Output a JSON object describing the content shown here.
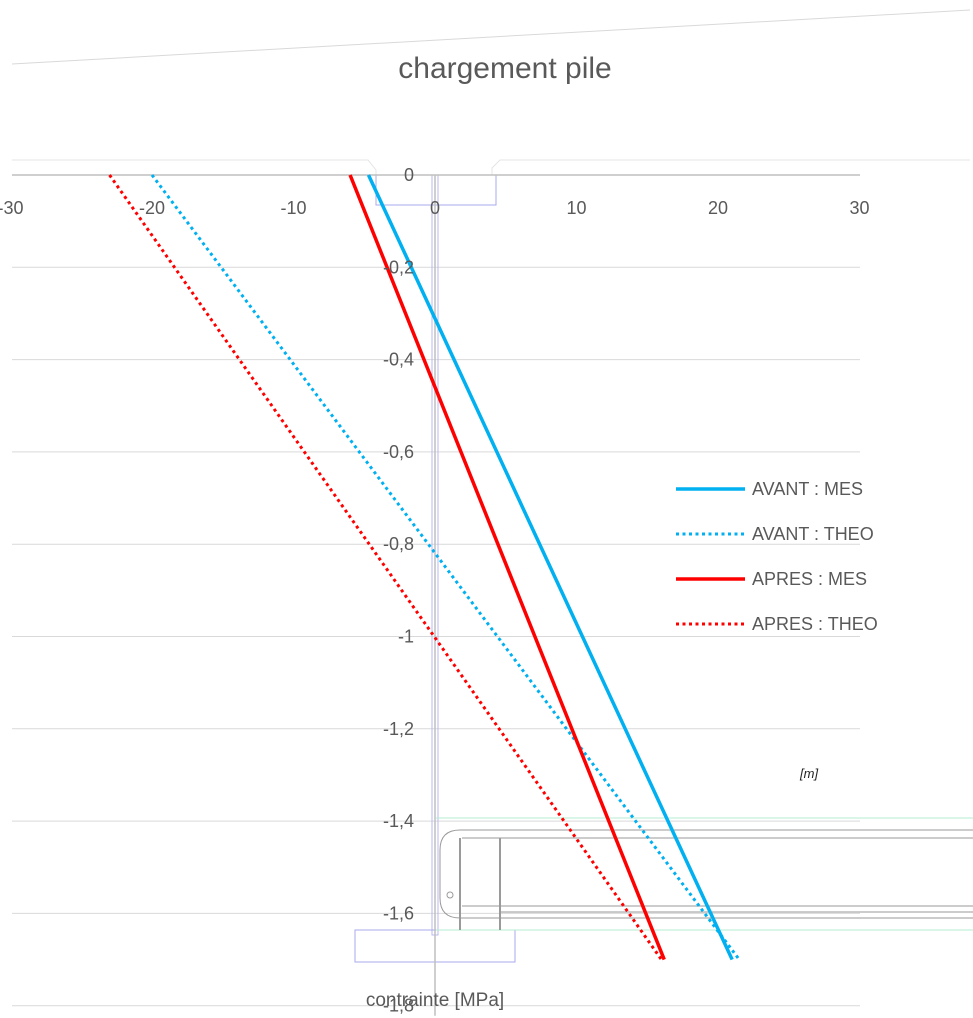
{
  "chart_data": {
    "type": "line",
    "title": "chargement pile",
    "xlabel": "contrainte [MPa]",
    "unit_note": "[m]",
    "xlim": [
      -30,
      30
    ],
    "ylim": [
      -1.8,
      0
    ],
    "x_ticks": [
      "-30",
      "-20",
      "-10",
      "0",
      "10",
      "20",
      "30"
    ],
    "y_ticks": [
      "0",
      "-0,2",
      "-0,4",
      "-0,6",
      "-0,8",
      "-1",
      "-1,2",
      "-1,4",
      "-1,6",
      "-1,8"
    ],
    "grid": true,
    "legend_position": "right",
    "series": [
      {
        "name": "AVANT : MES",
        "style": "solid",
        "color": "#00b0f0",
        "points": [
          [
            -4.7,
            0
          ],
          [
            21.0,
            -1.7
          ]
        ]
      },
      {
        "name": "AVANT : THEO",
        "style": "dotted",
        "color": "#00b0f0",
        "points": [
          [
            -20.0,
            0
          ],
          [
            21.5,
            -1.7
          ]
        ]
      },
      {
        "name": "APRES : MES",
        "style": "solid",
        "color": "#ff0000",
        "points": [
          [
            -6.0,
            0
          ],
          [
            16.2,
            -1.7
          ]
        ]
      },
      {
        "name": "APRES : THEO",
        "style": "dotted",
        "color": "#ff0000",
        "points": [
          [
            -23.0,
            0
          ],
          [
            16.0,
            -1.7
          ]
        ]
      }
    ]
  }
}
